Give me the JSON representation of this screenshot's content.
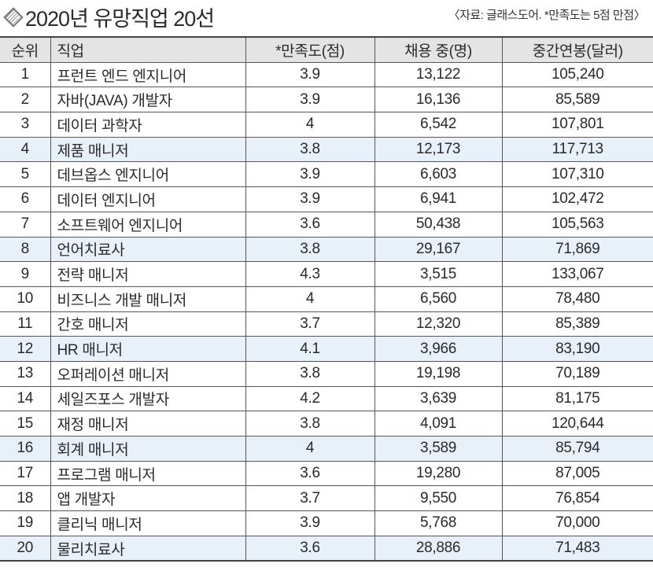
{
  "title": "2020년 유망직업 20선",
  "note": "〈자료: 글래스도어. *만족도는 5점 만점〉",
  "headers": [
    "순위",
    "직업",
    "*만족도(점)",
    "채용 중(명)",
    "중간연봉(달러)"
  ],
  "highlight_color": "#e8f1f9",
  "rows": [
    [
      "1",
      "프런트 엔드 엔지니어",
      "3.9",
      "13,122",
      "105,240"
    ],
    [
      "2",
      "자바(JAVA) 개발자",
      "3.9",
      "16,136",
      "85,589"
    ],
    [
      "3",
      "데이터 과학자",
      "4",
      "6,542",
      "107,801"
    ],
    [
      "4",
      "제품 매니저",
      "3.8",
      "12,173",
      "117,713"
    ],
    [
      "5",
      "데브옵스 엔지니어",
      "3.9",
      "6,603",
      "107,310"
    ],
    [
      "6",
      "데이터 엔지니어",
      "3.9",
      "6,941",
      "102,472"
    ],
    [
      "7",
      "소프트웨어 엔지니어",
      "3.6",
      "50,438",
      "105,563"
    ],
    [
      "8",
      "언어치료사",
      "3.8",
      "29,167",
      "71,869"
    ],
    [
      "9",
      "전략 매니저",
      "4.3",
      "3,515",
      "133,067"
    ],
    [
      "10",
      "비즈니스 개발 매니저",
      "4",
      "6,560",
      "78,480"
    ],
    [
      "11",
      "간호 매니저",
      "3.7",
      "12,320",
      "85,389"
    ],
    [
      "12",
      "HR 매니저",
      "4.1",
      "3,966",
      "83,190"
    ],
    [
      "13",
      "오퍼레이션 매니저",
      "3.8",
      "19,198",
      "70,189"
    ],
    [
      "14",
      "세일즈포스 개발자",
      "4.2",
      "3,639",
      "81,175"
    ],
    [
      "15",
      "재정 매니저",
      "3.8",
      "4,091",
      "120,644"
    ],
    [
      "16",
      "회계 매니저",
      "4",
      "3,589",
      "85,794"
    ],
    [
      "17",
      "프로그램 매니저",
      "3.6",
      "19,280",
      "87,005"
    ],
    [
      "18",
      "앱 개발자",
      "3.7",
      "9,550",
      "76,854"
    ],
    [
      "19",
      "클리닉 매니저",
      "3.9",
      "5,768",
      "70,000"
    ],
    [
      "20",
      "물리치료사",
      "3.6",
      "28,886",
      "71,483"
    ]
  ]
}
